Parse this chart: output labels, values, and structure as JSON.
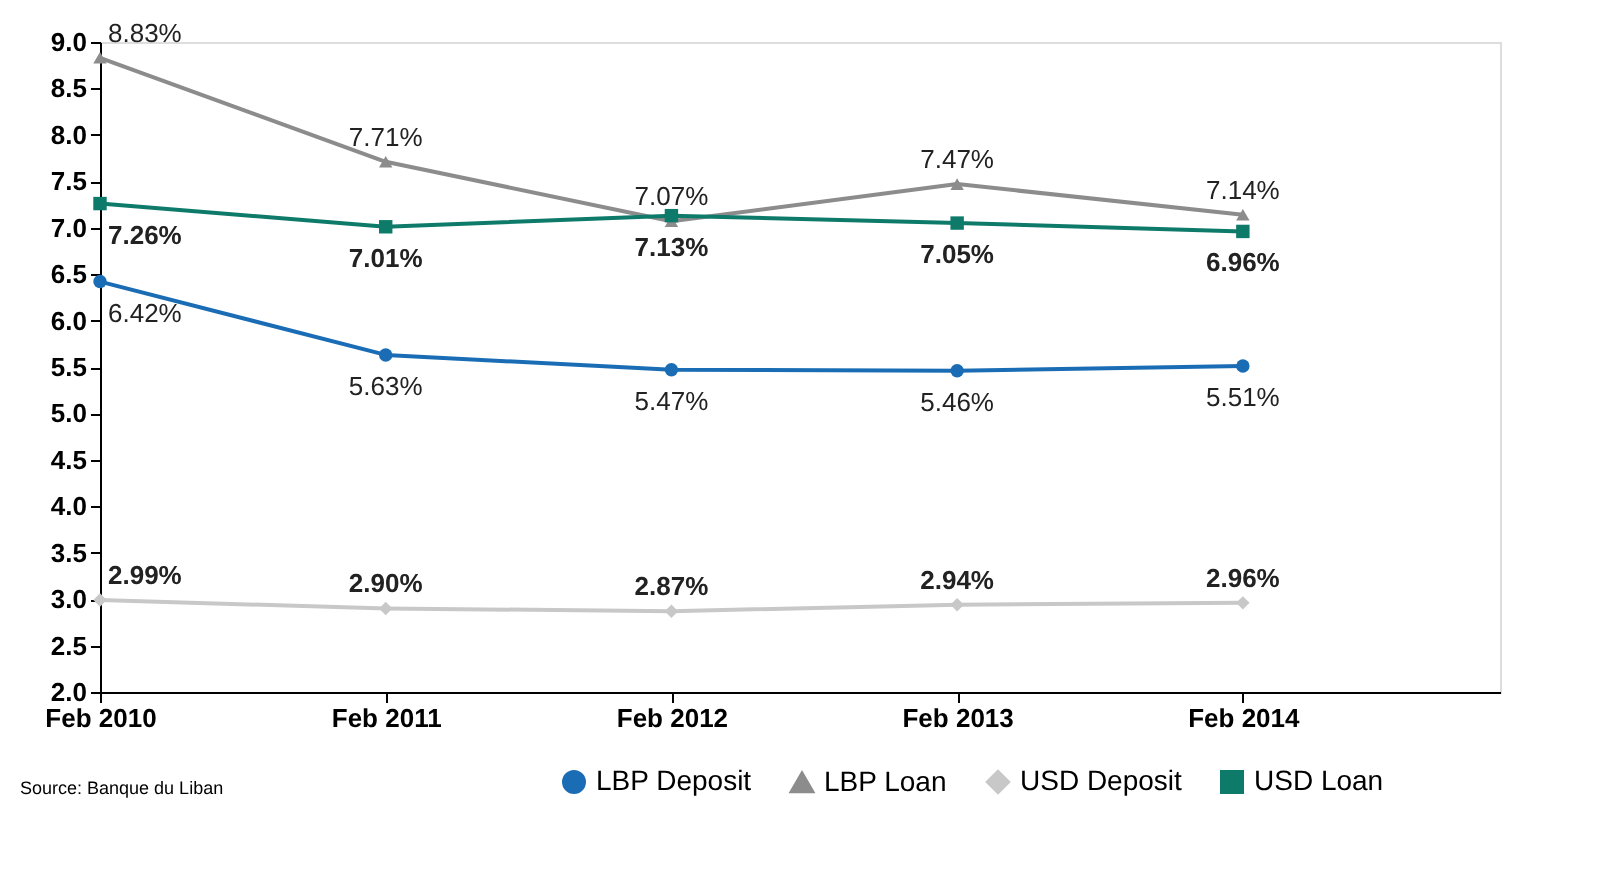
{
  "chart_data": {
    "type": "line",
    "categories": [
      "Feb 2010",
      "Feb 2011",
      "Feb 2012",
      "Feb 2013",
      "Feb 2014"
    ],
    "series": [
      {
        "name": "LBP Deposit",
        "color": "#1a6db5",
        "marker": "circle",
        "values": [
          6.42,
          5.63,
          5.47,
          5.46,
          5.51
        ],
        "value_labels": [
          "6.42%",
          "5.63%",
          "5.47%",
          "5.46%",
          "5.51%"
        ]
      },
      {
        "name": "LBP Loan",
        "color": "#8c8c8c",
        "marker": "triangle",
        "values": [
          8.83,
          7.71,
          7.07,
          7.47,
          7.14
        ],
        "value_labels": [
          "8.83%",
          "7.71%",
          "7.07%",
          "7.47%",
          "7.14%"
        ]
      },
      {
        "name": "USD Deposit",
        "color": "#c8c8c8",
        "marker": "diamond",
        "values": [
          2.99,
          2.9,
          2.87,
          2.94,
          2.96
        ],
        "value_labels": [
          "2.99%",
          "2.90%",
          "2.87%",
          "2.94%",
          "2.96%"
        ]
      },
      {
        "name": "USD Loan",
        "color": "#0e7a6a",
        "marker": "square",
        "values": [
          7.26,
          7.01,
          7.13,
          7.05,
          6.96
        ],
        "value_labels": [
          "7.26%",
          "7.01%",
          "7.13%",
          "7.05%",
          "6.96%"
        ]
      }
    ],
    "ylim": [
      2.0,
      9.0
    ],
    "yticks": [
      {
        "value": 2.0,
        "label": "2.0"
      },
      {
        "value": 2.5,
        "label": "2.5"
      },
      {
        "value": 3.0,
        "label": "3.0"
      },
      {
        "value": 3.5,
        "label": "3.5"
      },
      {
        "value": 4.0,
        "label": "4.0"
      },
      {
        "value": 4.5,
        "label": "4.5"
      },
      {
        "value": 5.0,
        "label": "5.0"
      },
      {
        "value": 5.5,
        "label": "5.5"
      },
      {
        "value": 6.0,
        "label": "6.0"
      },
      {
        "value": 6.5,
        "label": "6.5"
      },
      {
        "value": 7.0,
        "label": "7.0"
      },
      {
        "value": 7.5,
        "label": "7.5"
      },
      {
        "value": 8.0,
        "label": "8.0"
      },
      {
        "value": 8.5,
        "label": "8.5"
      },
      {
        "value": 9.0,
        "label": "9.0"
      }
    ],
    "data_labels": false,
    "grid": false,
    "legend": "bottom",
    "line_style": "solid",
    "annotations": [
      "Source:   Banque du Liban"
    ]
  }
}
